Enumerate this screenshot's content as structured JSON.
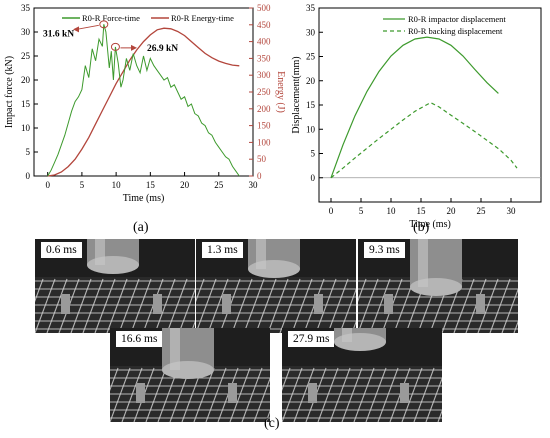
{
  "panels": {
    "a_label": "(a)",
    "b_label": "(b)",
    "c_label": "(c)"
  },
  "chart_data": [
    {
      "id": "a",
      "type": "line",
      "xlabel": "Time (ms)",
      "ylabel": "Impact force (kN)",
      "y2label": "Energy (J)",
      "xlim": [
        -2,
        30
      ],
      "ylim": [
        0,
        35
      ],
      "y2lim": [
        0,
        500
      ],
      "xticks": [
        0,
        5,
        10,
        15,
        20,
        25,
        30
      ],
      "yticks": [
        0,
        5,
        10,
        15,
        20,
        25,
        30,
        35
      ],
      "y2ticks": [
        0,
        50,
        100,
        150,
        200,
        250,
        300,
        350,
        400,
        450,
        500
      ],
      "grid": false,
      "legend_position": "top",
      "annotations": [
        {
          "text": "31.6 kN",
          "x": 8.2,
          "y": 31.6
        },
        {
          "text": "26.9 kN",
          "x": 9.9,
          "y": 26.9
        }
      ],
      "series": [
        {
          "name": "R0-R Force-time",
          "axis": "left",
          "color": "#3d9a2d",
          "x": [
            0,
            0.5,
            1,
            1.5,
            2,
            2.5,
            3,
            3.5,
            4,
            4.5,
            5,
            5.5,
            6,
            6.5,
            7,
            7.5,
            8,
            8.2,
            8.5,
            9,
            9.3,
            9.6,
            9.9,
            10.3,
            10.7,
            11,
            11.5,
            12,
            12.5,
            13,
            13.5,
            14,
            14.5,
            15,
            15.5,
            16,
            16.5,
            17,
            17.5,
            18,
            18.5,
            19,
            19.5,
            20,
            20.5,
            21,
            21.5,
            22,
            22.5,
            23,
            23.5,
            24,
            24.5,
            25,
            25.5,
            26,
            26.5,
            27,
            27.5,
            28
          ],
          "values": [
            0,
            1.2,
            2.8,
            4.5,
            6.5,
            8.5,
            11,
            13.5,
            15.5,
            16.5,
            18,
            23,
            20.5,
            26.5,
            24,
            28.5,
            27,
            31.6,
            30,
            22.5,
            26,
            20,
            26.9,
            23.5,
            18.5,
            20,
            24.5,
            22,
            25.5,
            23,
            21.5,
            25,
            22,
            24.5,
            23,
            22,
            21,
            20,
            20.5,
            18.5,
            19,
            17.5,
            16,
            16.5,
            14.5,
            15,
            13,
            12.5,
            11,
            10.5,
            9,
            8.5,
            7,
            6,
            5,
            4,
            3.5,
            2,
            1,
            0
          ]
        },
        {
          "name": "R0-R Energy-time",
          "axis": "right",
          "color": "#b3463c",
          "x": [
            0,
            1,
            2,
            3,
            4,
            5,
            6,
            7,
            8,
            9,
            10,
            11,
            12,
            13,
            14,
            15,
            16,
            17,
            18,
            19,
            20,
            21,
            22,
            23,
            24,
            25,
            26,
            27,
            28
          ],
          "values": [
            0,
            3,
            12,
            28,
            50,
            80,
            115,
            155,
            195,
            235,
            275,
            310,
            345,
            375,
            400,
            420,
            435,
            440,
            438,
            430,
            418,
            400,
            382,
            365,
            352,
            342,
            335,
            330,
            328
          ]
        }
      ]
    },
    {
      "id": "b",
      "type": "line",
      "xlabel": "Time (ms)",
      "ylabel": "Displacement(mm)",
      "xlim": [
        -2,
        35
      ],
      "ylim": [
        -5,
        35
      ],
      "xticks": [
        0,
        5,
        10,
        15,
        20,
        25,
        30
      ],
      "yticks": [
        0,
        5,
        10,
        15,
        20,
        25,
        30,
        35
      ],
      "grid": false,
      "legend_position": "top-right",
      "series": [
        {
          "name": "R0-R impactor displacement",
          "color": "#3d9a2d",
          "style": "solid",
          "x": [
            0,
            2,
            4,
            6,
            8,
            10,
            12,
            14,
            16,
            18,
            20,
            22,
            24,
            26,
            27.9
          ],
          "values": [
            0,
            6.8,
            12.8,
            17.8,
            21.9,
            25.1,
            27.3,
            28.6,
            29.0,
            28.6,
            27.3,
            25.1,
            22.3,
            19.6,
            17.4
          ]
        },
        {
          "name": "R0-R backing displacement",
          "color": "#3d9a2d",
          "style": "dashed",
          "x": [
            0,
            2,
            4,
            6,
            8,
            10,
            12,
            14,
            16.6,
            18,
            20,
            22,
            24,
            26,
            28,
            30,
            31
          ],
          "values": [
            0,
            2,
            4.1,
            6.1,
            8.1,
            10,
            11.9,
            13.7,
            15.5,
            14.6,
            12.9,
            11.2,
            9.5,
            7.7,
            5.9,
            3.6,
            2
          ]
        }
      ]
    }
  ],
  "photos": [
    {
      "time": "0.6 ms"
    },
    {
      "time": "1.3 ms"
    },
    {
      "time": "9.3 ms"
    },
    {
      "time": "16.6 ms"
    },
    {
      "time": "27.9 ms"
    }
  ]
}
